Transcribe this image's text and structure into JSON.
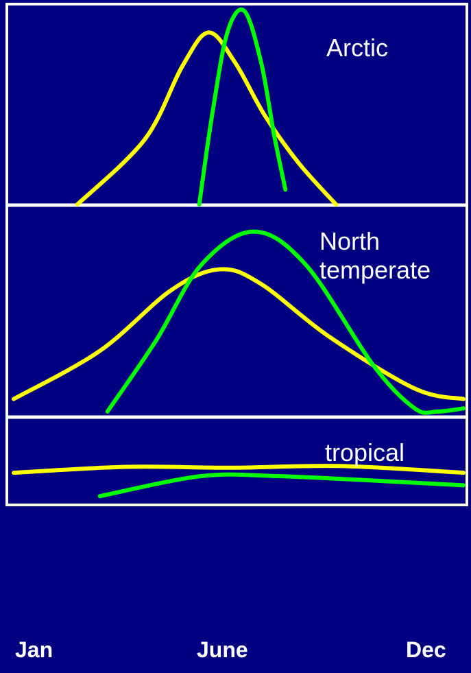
{
  "colors": {
    "background": "#000080",
    "frame": "#FFFFFF",
    "yellow_curve": "#FFFF00",
    "green_curve": "#00FF00",
    "text": "#FFFFFF"
  },
  "x_axis": {
    "labels": [
      "Jan",
      "June",
      "Dec"
    ],
    "domain": [
      0,
      12
    ]
  },
  "chart_data": [
    {
      "type": "line",
      "label": "Arctic",
      "ylim": [
        0,
        10
      ],
      "series": [
        {
          "color": "yellow",
          "points": [
            [
              1.7,
              0
            ],
            [
              3.5,
              3.3
            ],
            [
              4.5,
              7.0
            ],
            [
              5.2,
              8.7
            ],
            [
              5.9,
              7.2
            ],
            [
              6.7,
              4.5
            ],
            [
              7.6,
              2.1
            ],
            [
              8.6,
              0
            ]
          ]
        },
        {
          "color": "green",
          "points": [
            [
              4.95,
              0
            ],
            [
              5.3,
              4.6
            ],
            [
              5.7,
              8.7
            ],
            [
              6.15,
              9.8
            ],
            [
              6.6,
              7.2
            ],
            [
              6.95,
              3.5
            ],
            [
              7.25,
              0.75
            ]
          ]
        }
      ]
    },
    {
      "type": "line",
      "label": "North temperate",
      "ylim": [
        0,
        10
      ],
      "series": [
        {
          "color": "yellow",
          "points": [
            [
              0,
              0.8
            ],
            [
              2.3,
              3.1
            ],
            [
              4.2,
              6.0
            ],
            [
              5.5,
              7.0
            ],
            [
              6.6,
              6.3
            ],
            [
              8.4,
              3.8
            ],
            [
              10.7,
              1.3
            ],
            [
              12,
              0.8
            ]
          ]
        },
        {
          "color": "green",
          "points": [
            [
              2.5,
              0.2
            ],
            [
              3.8,
              3.6
            ],
            [
              5.0,
              7.2
            ],
            [
              6.4,
              8.8
            ],
            [
              7.8,
              7.2
            ],
            [
              9.6,
              2.4
            ],
            [
              10.7,
              0.35
            ],
            [
              11.3,
              0.2
            ],
            [
              12,
              0.35
            ]
          ]
        }
      ]
    },
    {
      "type": "line",
      "label": "tropical",
      "ylim": [
        0,
        10
      ],
      "series": [
        {
          "color": "yellow",
          "points": [
            [
              0,
              3.6
            ],
            [
              3.0,
              4.3
            ],
            [
              5.8,
              4.2
            ],
            [
              8.7,
              4.4
            ],
            [
              12,
              3.6
            ]
          ]
        },
        {
          "color": "green",
          "points": [
            [
              2.3,
              0.8
            ],
            [
              5.0,
              3.2
            ],
            [
              7.0,
              3.2
            ],
            [
              9.0,
              2.8
            ],
            [
              12,
              2.1
            ]
          ]
        }
      ]
    }
  ]
}
